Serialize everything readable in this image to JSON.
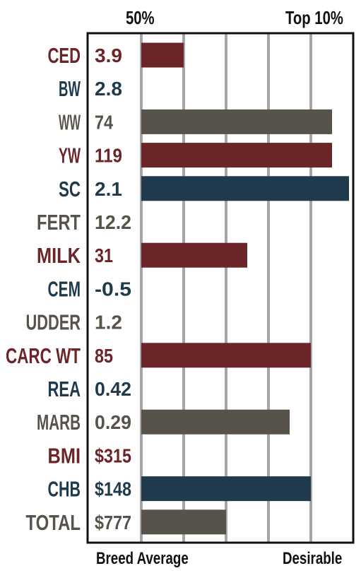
{
  "header": {
    "left_label": "50%",
    "right_label": "Top 10%"
  },
  "footer": {
    "left_label": "Breed Average",
    "right_label": "Desirable"
  },
  "colors": {
    "red": "#6b2428",
    "navy": "#1f3a4c",
    "olive": "#57524a",
    "grid": "#a7a5a8",
    "frame": "#111111"
  },
  "chart_data": {
    "type": "bar",
    "orientation": "horizontal",
    "scale": "percentile rank, 0 = Breed Average (50%) to 4.9 = beyond Top 10% (Desirable)",
    "grid_lines": 5,
    "rows": [
      {
        "trait": "CED",
        "value": "3.9",
        "bar": 1.0,
        "color": "red"
      },
      {
        "trait": "BW",
        "value": "2.8",
        "bar": 0,
        "color": "navy"
      },
      {
        "trait": "WW",
        "value": "74",
        "bar": 4.5,
        "color": "olive"
      },
      {
        "trait": "YW",
        "value": "119",
        "bar": 4.5,
        "color": "red"
      },
      {
        "trait": "SC",
        "value": "2.1",
        "bar": 4.9,
        "color": "navy"
      },
      {
        "trait": "FERT",
        "value": "12.2",
        "bar": 0,
        "color": "olive"
      },
      {
        "trait": "MILK",
        "value": "31",
        "bar": 2.5,
        "color": "red"
      },
      {
        "trait": "CEM",
        "value": "-0.5",
        "bar": 0,
        "color": "navy"
      },
      {
        "trait": "UDDER",
        "value": "1.2",
        "bar": 0,
        "color": "olive"
      },
      {
        "trait": "CARC WT",
        "value": "85",
        "bar": 4.0,
        "color": "red"
      },
      {
        "trait": "REA",
        "value": "0.42",
        "bar": 0,
        "color": "navy"
      },
      {
        "trait": "MARB",
        "value": "0.29",
        "bar": 3.5,
        "color": "olive"
      },
      {
        "trait": "BMI",
        "value": "$315",
        "bar": 0,
        "color": "red"
      },
      {
        "trait": "CHB",
        "value": "$148",
        "bar": 4.0,
        "color": "navy"
      },
      {
        "trait": "TOTAL",
        "value": "$777",
        "bar": 2.0,
        "color": "olive"
      }
    ]
  }
}
